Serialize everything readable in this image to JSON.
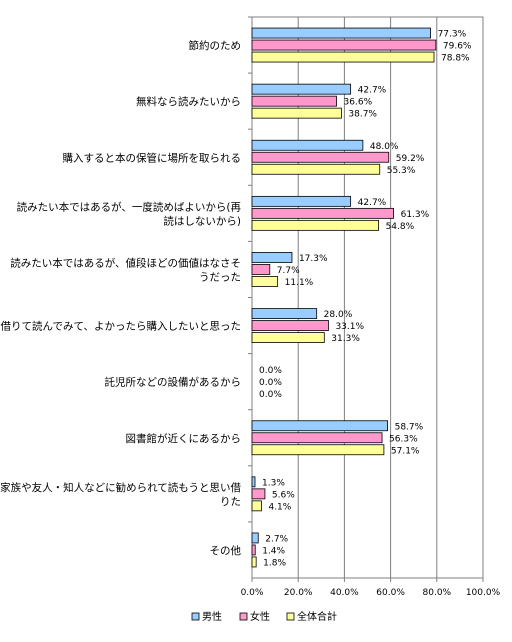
{
  "chart_data": {
    "type": "bar",
    "orientation": "horizontal",
    "categories": [
      "節約のため",
      "無料なら読みたいから",
      "購入すると本の保管に場所を取られる",
      "読みたい本ではあるが、一度読めばよいから(再読はしないから)",
      "読みたい本ではあるが、値段ほどの価値はなさそうだった",
      "借りて読んでみて、よかったら購入したいと思った",
      "託児所などの設備があるから",
      "図書館が近くにあるから",
      "家族や友人・知人などに勧められて読もうと思い借りた",
      "その他"
    ],
    "category_lines": [
      [
        "節約のため"
      ],
      [
        "無料なら読みたいから"
      ],
      [
        "購入すると本の保管に場所を取られる"
      ],
      [
        "読みたい本ではあるが、一度読めばよいから(再",
        "読はしないから)"
      ],
      [
        "読みたい本ではあるが、値段ほどの価値はなさそ",
        "うだった"
      ],
      [
        "借りて読んでみて、よかったら購入したいと思った"
      ],
      [
        "託児所などの設備があるから"
      ],
      [
        "図書館が近くにあるから"
      ],
      [
        "家族や友人・知人などに勧められて読もうと思い借",
        "りた"
      ],
      [
        "その他"
      ]
    ],
    "series": [
      {
        "name": "男性",
        "color": "#99CCFF",
        "values": [
          77.3,
          42.7,
          48.0,
          42.7,
          17.3,
          28.0,
          0.0,
          58.7,
          1.3,
          2.7
        ]
      },
      {
        "name": "女性",
        "color": "#FF99CC",
        "values": [
          79.6,
          36.6,
          59.2,
          61.3,
          7.7,
          33.1,
          0.0,
          56.3,
          5.6,
          1.4
        ]
      },
      {
        "name": "全体合計",
        "color": "#FFFF99",
        "values": [
          78.8,
          38.7,
          55.3,
          54.8,
          11.1,
          31.3,
          0.0,
          57.1,
          4.1,
          1.8
        ]
      }
    ],
    "value_labels": [
      [
        "77.3%",
        "42.7%",
        "48.0%",
        "42.7%",
        "17.3%",
        "28.0%",
        "0.0%",
        "58.7%",
        "1.3%",
        "2.7%"
      ],
      [
        "79.6%",
        "36.6%",
        "59.2%",
        "61.3%",
        "7.7%",
        "33.1%",
        "0.0%",
        "56.3%",
        "5.6%",
        "1.4%"
      ],
      [
        "78.8%",
        "38.7%",
        "55.3%",
        "54.8%",
        "11.1%",
        "31.3%",
        "0.0%",
        "57.1%",
        "4.1%",
        "1.8%"
      ]
    ],
    "xlim": [
      0,
      100
    ],
    "x_ticks": [
      "0.0%",
      "20.0%",
      "40.0%",
      "60.0%",
      "80.0%",
      "100.0%"
    ],
    "grid": "vertical",
    "legend_position": "bottom",
    "xlabel": "",
    "ylabel": ""
  }
}
